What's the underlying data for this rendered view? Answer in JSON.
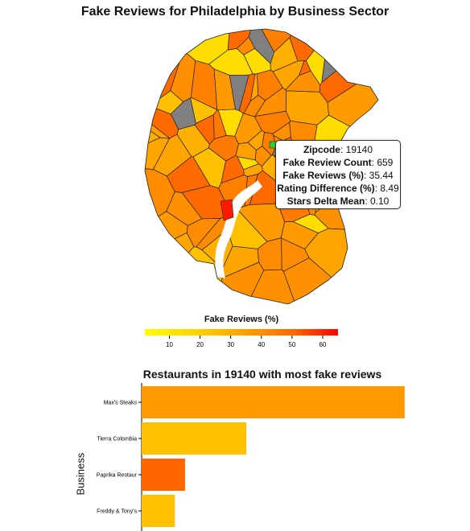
{
  "map": {
    "title": "Fake Reviews for Philadelphia by Business Sector",
    "highlighted_zipcode": "19140",
    "highlight_color": "#33cc33",
    "no_data_color": "#808080",
    "color_scale": [
      "#ffff00",
      "#ffcc00",
      "#ff9900",
      "#ff6600",
      "#ff0000"
    ]
  },
  "tooltip": {
    "rows": [
      {
        "label": "Zipcode",
        "value": "19140"
      },
      {
        "label": "Fake Review Count",
        "value": "659"
      },
      {
        "label": "Fake Reviews (%)",
        "value": "35.44"
      },
      {
        "label": "Rating Difference (%)",
        "value": "8.49"
      },
      {
        "label": "Stars Delta Mean",
        "value": "0.10"
      }
    ]
  },
  "legend": {
    "title": "Fake Reviews (%)",
    "ticks": [
      "10",
      "20",
      "30",
      "40",
      "50",
      "60"
    ],
    "domain": [
      2,
      65
    ]
  },
  "chart_data": {
    "type": "bar",
    "title": "Restaurants in 19140 with most fake reviews",
    "ylabel": "Business",
    "xlabel": "",
    "categories": [
      "Max's Steaks",
      "Tierra Colombia",
      "Paprika Restaur",
      "Freddy & Tony's"
    ],
    "values": [
      103,
      41,
      17,
      13
    ],
    "colors": [
      "#ff9a00",
      "#ffc000",
      "#ff6600",
      "#ffc000"
    ],
    "xlim": [
      0,
      104
    ]
  }
}
